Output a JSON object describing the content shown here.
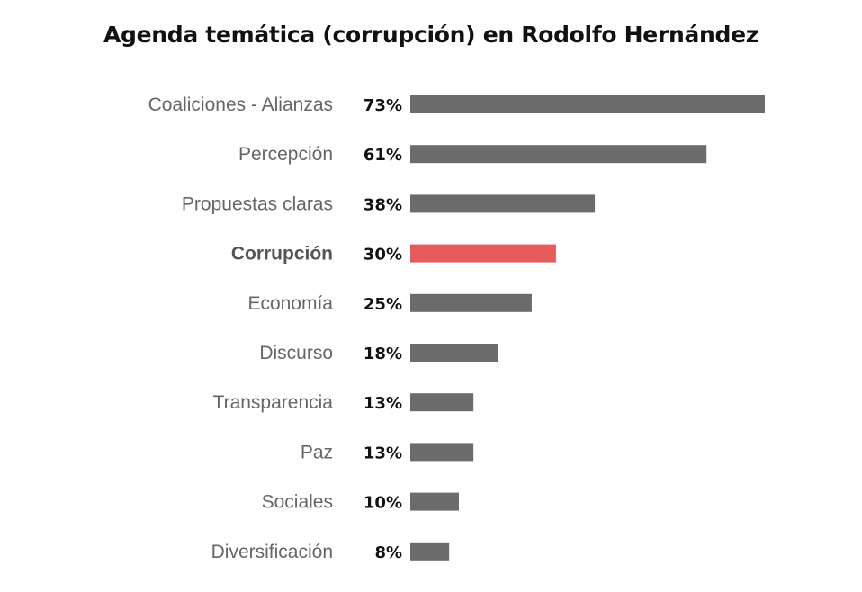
{
  "chart_data": {
    "type": "bar",
    "orientation": "horizontal",
    "title": "Agenda temática (corrupción) en Rodolfo Hernández",
    "categories": [
      "Coaliciones - Alianzas",
      "Percepción",
      "Propuestas claras",
      "Corrupción",
      "Economía",
      "Discurso",
      "Transparencia",
      "Paz",
      "Sociales",
      "Diversificación"
    ],
    "values": [
      73,
      61,
      38,
      30,
      25,
      18,
      13,
      13,
      10,
      8
    ],
    "value_labels": [
      "73%",
      "61%",
      "38%",
      "30%",
      "25%",
      "18%",
      "13%",
      "13%",
      "10%",
      "8%"
    ],
    "highlight": "Corrupción",
    "xlim": [
      0,
      73
    ],
    "grid": false,
    "legend": "none"
  },
  "colors": {
    "bar": "#6b6b6b",
    "highlight": "#e65c5c"
  }
}
